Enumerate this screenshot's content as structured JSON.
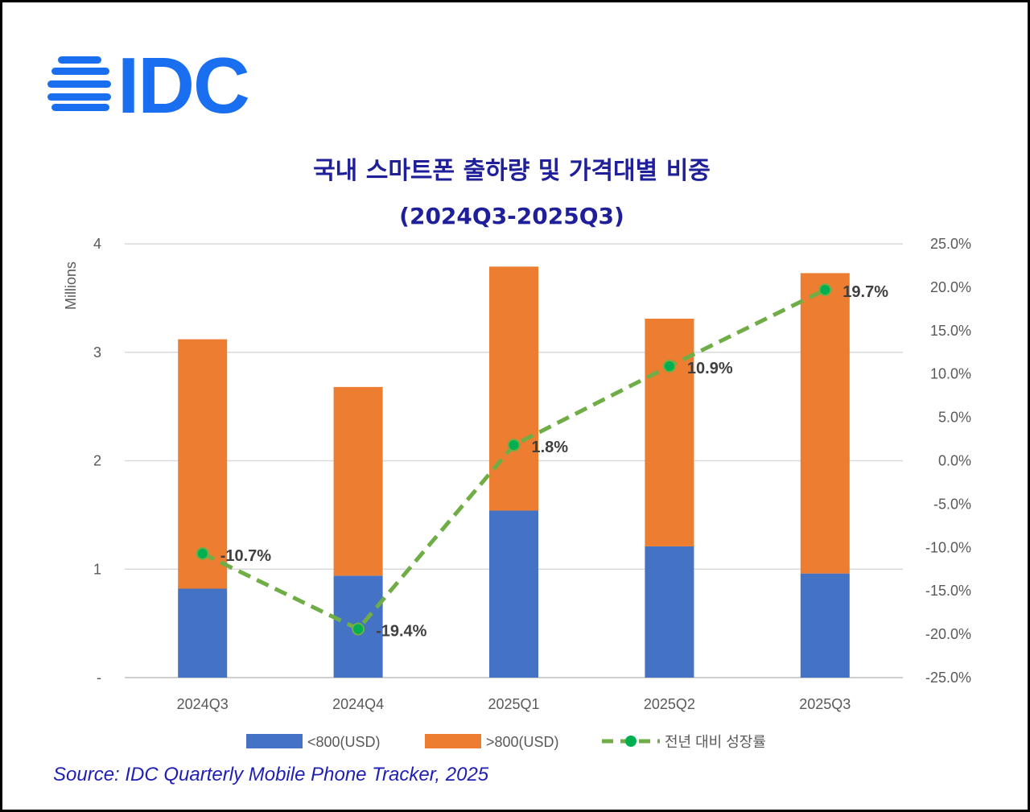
{
  "logo": {
    "text": "IDC",
    "color": "#1a6ff0"
  },
  "chart_data": {
    "type": "bar+line",
    "title": "국내 스마트폰 출하량 및 가격대별 비중",
    "subtitle": "(2024Q3-2025Q3)",
    "ylabel": "Millions",
    "ylim": [
      0,
      4
    ],
    "y2lim": [
      -25,
      25
    ],
    "y_ticks": [
      "-",
      "1",
      "2",
      "3",
      "4"
    ],
    "y2_ticks": [
      "-25.0%",
      "-20.0%",
      "-15.0%",
      "-10.0%",
      "-5.0%",
      "0.0%",
      "5.0%",
      "10.0%",
      "15.0%",
      "20.0%",
      "25.0%"
    ],
    "grid": true,
    "legend_position": "bottom",
    "categories": [
      "2024Q3",
      "2024Q4",
      "2025Q1",
      "2025Q2",
      "2025Q3"
    ],
    "series": [
      {
        "name": "<800(USD)",
        "type": "stacked-bar",
        "color": "#4472c4",
        "values": [
          0.82,
          0.94,
          1.54,
          1.21,
          0.96
        ]
      },
      {
        "name": ">800(USD)",
        "type": "stacked-bar",
        "color": "#ed7d31",
        "values": [
          2.3,
          1.74,
          2.25,
          2.1,
          2.77
        ]
      },
      {
        "name": "전년 대비 성장률",
        "type": "line",
        "axis": "right",
        "color": "#70ad47",
        "marker_color": "#00b050",
        "values": [
          -10.7,
          -19.4,
          1.8,
          10.9,
          19.7
        ],
        "labels": [
          "-10.7%",
          "-19.4%",
          "1.8%",
          "10.9%",
          "19.7%"
        ]
      }
    ]
  },
  "source": "Source: IDC Quarterly Mobile Phone Tracker, 2025"
}
